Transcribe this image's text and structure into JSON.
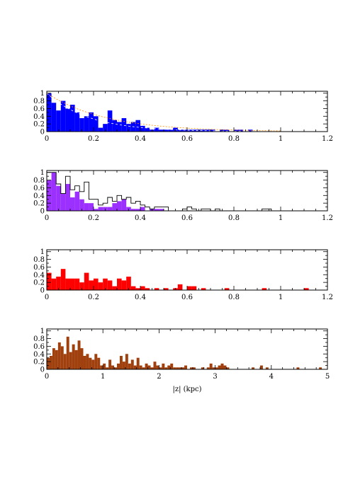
{
  "chart_data": [
    {
      "type": "bar",
      "xlim": [
        0,
        1.2
      ],
      "ylim": [
        0,
        1.05
      ],
      "xticks": [
        "0",
        "0.2",
        "0.4",
        "0.6",
        "0.8",
        "1",
        "1.2"
      ],
      "yticks": [
        "0",
        "0.2",
        "0.4",
        "0.6",
        "0.8",
        "1"
      ],
      "binwidth": 0.02,
      "fill_color": "#0000ff",
      "series": [
        {
          "values": [
            1.0,
            0.75,
            0.55,
            0.8,
            0.6,
            0.7,
            0.5,
            0.35,
            0.4,
            0.5,
            0.4,
            0.1,
            0.2,
            0.55,
            0.3,
            0.25,
            0.35,
            0.2,
            0.25,
            0.3,
            0.15,
            0.1,
            0.05,
            0.1,
            0.05,
            0.05,
            0.05,
            0.1,
            0.05,
            0.05,
            0.05,
            0.05,
            0.05,
            0.05,
            0.05,
            0.05,
            0.0,
            0.05,
            0.05,
            0.0,
            0.05,
            0.05,
            0.0,
            0.05,
            0.0,
            0.0,
            0.0,
            0.0
          ]
        }
      ],
      "curves": [
        {
          "scale_length_kpc": 0.25,
          "color": "#ff8c00",
          "dash": "2,2"
        },
        {
          "scale_length_kpc": 0.18,
          "color": "#ffffff",
          "dash": "3,3"
        }
      ]
    },
    {
      "type": "bar",
      "xlim": [
        0,
        1.2
      ],
      "ylim": [
        0,
        1.05
      ],
      "xticks": [
        "0",
        "0.2",
        "0.4",
        "0.6",
        "0.8",
        "1",
        "1.2"
      ],
      "yticks": [
        "0",
        "0.2",
        "0.4",
        "0.6",
        "0.8",
        "1"
      ],
      "binwidth": 0.02,
      "fill_color": "#9b30ff",
      "series": [
        {
          "values": [
            0.8,
            1.0,
            0.65,
            0.45,
            0.7,
            0.35,
            0.5,
            0.3,
            0.2,
            0.2,
            0.05,
            0.1,
            0.1,
            0.1,
            0.2,
            0.25,
            0.3,
            0.1,
            0.05,
            0.05,
            0.1,
            0.0,
            0.05,
            0.05,
            0.05
          ]
        },
        {
          "values": [
            1.0,
            1.0,
            0.7,
            0.45,
            0.9,
            0.55,
            0.65,
            0.5,
            0.75,
            0.3,
            0.3,
            0.15,
            0.2,
            0.35,
            0.25,
            0.4,
            0.3,
            0.35,
            0.2,
            0.25,
            0.15,
            0.1,
            0.05,
            0.1,
            0.1,
            0.1,
            0.0,
            0.0,
            0.0,
            0.05,
            0.1,
            0.05,
            0.0,
            0.05,
            0.05,
            0.0,
            0.05,
            0.0,
            0.0,
            0.0,
            0.0,
            0.0,
            0.0,
            0.0,
            0.0,
            0.0,
            0.05,
            0.05
          ]
        }
      ]
    },
    {
      "type": "bar",
      "xlim": [
        0,
        1.2
      ],
      "ylim": [
        0,
        1.05
      ],
      "xticks": [
        "0",
        "0.2",
        "0.4",
        "0.6",
        "0.8",
        "1",
        "1.2"
      ],
      "yticks": [
        "0",
        "0.2",
        "0.4",
        "0.6",
        "0.8",
        "1"
      ],
      "binwidth": 0.02,
      "fill_color": "#ff0000",
      "series": [
        {
          "values": [
            0.45,
            0.3,
            0.35,
            0.55,
            0.3,
            0.3,
            0.3,
            0.2,
            0.45,
            0.25,
            0.3,
            0.2,
            0.3,
            0.25,
            0.1,
            0.3,
            0.25,
            0.35,
            0.1,
            0.05,
            0.1,
            0.05,
            0.0,
            0.05,
            0.0,
            0.05,
            0.0,
            0.05,
            0.15,
            0.0,
            0.1,
            0.1,
            0.0,
            0.05,
            0.0,
            0.0,
            0.0,
            0.0,
            0.05,
            0.0,
            0.0,
            0.0,
            0.0,
            0.0,
            0.0,
            0.0,
            0.05,
            0.0,
            0.0,
            0.0,
            0.0,
            0.0,
            0.0,
            0.0,
            0.0,
            0.05
          ]
        }
      ]
    },
    {
      "type": "bar",
      "xlim": [
        0,
        5
      ],
      "ylim": [
        0,
        1.05
      ],
      "xticks": [
        "0",
        "1",
        "2",
        "3",
        "4",
        "5"
      ],
      "yticks": [
        "0",
        "0.2",
        "0.4",
        "0.6",
        "0.8",
        "1"
      ],
      "binwidth": 0.05,
      "fill_color": "#a0400e",
      "xlabel": "|z| (kpc)",
      "series": [
        {
          "values": [
            0.3,
            0.35,
            0.55,
            0.5,
            0.7,
            0.6,
            0.4,
            0.85,
            0.45,
            0.65,
            0.5,
            0.75,
            0.55,
            0.35,
            0.4,
            0.3,
            0.25,
            0.4,
            0.3,
            0.1,
            0.15,
            0.05,
            0.25,
            0.1,
            0.05,
            0.15,
            0.35,
            0.2,
            0.4,
            0.15,
            0.25,
            0.1,
            0.3,
            0.1,
            0.05,
            0.15,
            0.1,
            0.05,
            0.2,
            0.1,
            0.05,
            0.15,
            0.05,
            0.1,
            0.15,
            0.05,
            0.05,
            0.05,
            0.05,
            0.1,
            0.0,
            0.05,
            0.05,
            0.0,
            0.0,
            0.05,
            0.0,
            0.05,
            0.15,
            0.05,
            0.05,
            0.1,
            0.15,
            0.1,
            0.05,
            0.0,
            0.0,
            0.0,
            0.0,
            0.0,
            0.0,
            0.0,
            0.0,
            0.05,
            0.0,
            0.0,
            0.1,
            0.0,
            0.05,
            0.0,
            0.0,
            0.0,
            0.0,
            0.0,
            0.0,
            0.0,
            0.0,
            0.0,
            0.0,
            0.05,
            0.0,
            0.0,
            0.0,
            0.0,
            0.0,
            0.0,
            0.0,
            0.05
          ]
        }
      ]
    }
  ]
}
